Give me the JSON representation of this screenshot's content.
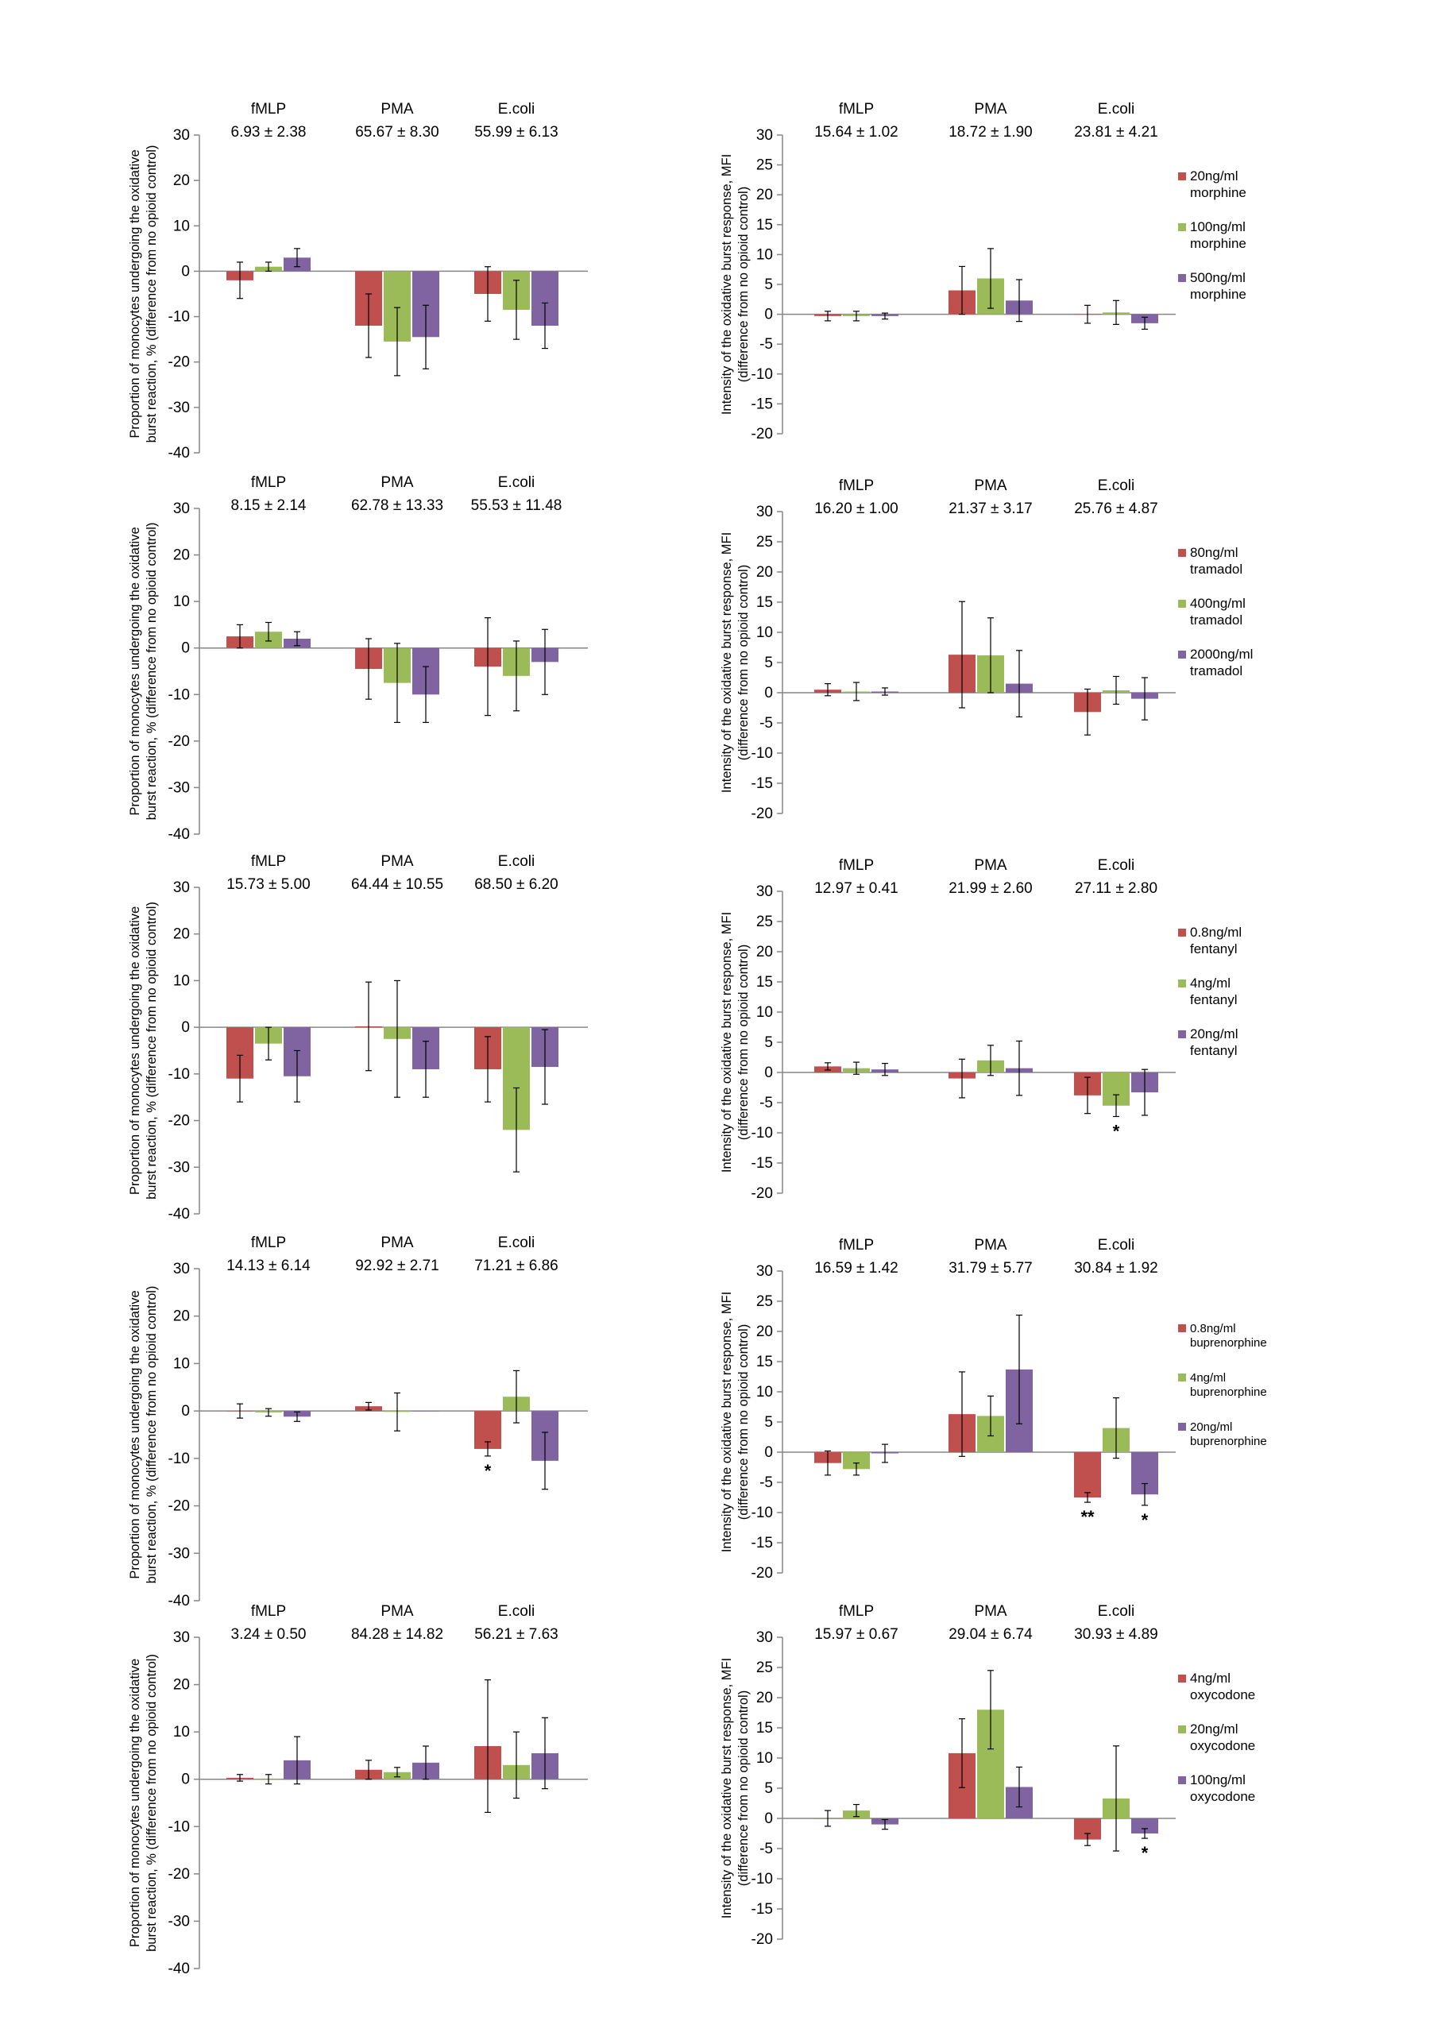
{
  "colors": {
    "low": "#C0504D",
    "mid": "#9BBB59",
    "high": "#8064A2"
  },
  "chart_data": [
    {
      "type": "bar",
      "row": 1,
      "panel": "proportion",
      "ylabel": "Proportion of monocytes undergoing the oxidative burst reaction, % (difference from no opioid control)",
      "ylim": [
        -40,
        30
      ],
      "yticks": [
        30,
        20,
        10,
        0,
        -10,
        -20,
        -30,
        -40
      ],
      "categories": [
        "fMLP",
        "PMA",
        "E.coli"
      ],
      "baselines": [
        "6.93 ± 2.38",
        "65.67 ± 8.30",
        "55.99 ± 6.13"
      ],
      "series": [
        {
          "values": [
            -2.0,
            -12.0,
            -5.0
          ],
          "errors": [
            4.0,
            7.0,
            6.0
          ],
          "marks": [
            "",
            "",
            ""
          ]
        },
        {
          "values": [
            1.0,
            -15.5,
            -8.5
          ],
          "errors": [
            1.0,
            7.5,
            6.5
          ],
          "marks": [
            "",
            "",
            ""
          ]
        },
        {
          "values": [
            3.0,
            -14.5,
            -12.0
          ],
          "errors": [
            2.0,
            7.0,
            5.0
          ],
          "marks": [
            "",
            "",
            ""
          ]
        }
      ],
      "legend": []
    },
    {
      "type": "bar",
      "row": 1,
      "panel": "intensity",
      "ylabel": "Intensity of the oxidative burst response, MFI (difference from no opioid control)",
      "ylim": [
        -20,
        30
      ],
      "yticks": [
        30,
        25,
        20,
        15,
        10,
        5,
        0,
        -5,
        -10,
        -15,
        -20
      ],
      "categories": [
        "fMLP",
        "PMA",
        "E.coli"
      ],
      "baselines": [
        "15.64 ± 1.02",
        "18.72 ± 1.90",
        "23.81 ± 4.21"
      ],
      "series": [
        {
          "values": [
            -0.3,
            4.0,
            0.0
          ],
          "errors": [
            0.8,
            4.0,
            1.5
          ],
          "marks": [
            "",
            "",
            ""
          ]
        },
        {
          "values": [
            -0.3,
            6.0,
            0.3
          ],
          "errors": [
            0.8,
            5.0,
            2.0
          ],
          "marks": [
            "",
            "",
            ""
          ]
        },
        {
          "values": [
            -0.3,
            2.3,
            -1.5
          ],
          "errors": [
            0.5,
            3.5,
            1.0
          ],
          "marks": [
            "",
            "",
            ""
          ]
        }
      ],
      "legend": [
        "20ng/ml morphine",
        "100ng/ml morphine",
        "500ng/ml morphine"
      ]
    },
    {
      "type": "bar",
      "row": 2,
      "panel": "proportion",
      "ylabel": "Proportion of monocytes undergoing the oxidative burst reaction, % (difference from no opioid control)",
      "ylim": [
        -40,
        30
      ],
      "yticks": [
        30,
        20,
        10,
        0,
        -10,
        -20,
        -30,
        -40
      ],
      "categories": [
        "fMLP",
        "PMA",
        "E.coli"
      ],
      "baselines": [
        "8.15 ± 2.14",
        "62.78 ± 13.33",
        "55.53 ± 11.48"
      ],
      "series": [
        {
          "values": [
            2.5,
            -4.5,
            -4.0
          ],
          "errors": [
            2.5,
            6.5,
            10.5
          ],
          "marks": [
            "",
            "",
            ""
          ]
        },
        {
          "values": [
            3.5,
            -7.5,
            -6.0
          ],
          "errors": [
            2.0,
            8.5,
            7.5
          ],
          "marks": [
            "",
            "",
            ""
          ]
        },
        {
          "values": [
            2.0,
            -10.0,
            -3.0
          ],
          "errors": [
            1.5,
            6.0,
            7.0
          ],
          "marks": [
            "",
            "",
            ""
          ]
        }
      ],
      "legend": []
    },
    {
      "type": "bar",
      "row": 2,
      "panel": "intensity",
      "ylabel": "Intensity of the oxidative burst response, MFI (difference from no opioid control)",
      "ylim": [
        -20,
        30
      ],
      "yticks": [
        30,
        25,
        20,
        15,
        10,
        5,
        0,
        -5,
        -10,
        -15,
        -20
      ],
      "categories": [
        "fMLP",
        "PMA",
        "E.coli"
      ],
      "baselines": [
        "16.20 ± 1.00",
        "21.37 ± 3.17",
        "25.76 ± 4.87"
      ],
      "series": [
        {
          "values": [
            0.5,
            6.3,
            -3.2
          ],
          "errors": [
            1.0,
            8.8,
            3.8
          ],
          "marks": [
            "",
            "",
            ""
          ]
        },
        {
          "values": [
            0.2,
            6.2,
            0.4
          ],
          "errors": [
            1.5,
            6.2,
            2.3
          ],
          "marks": [
            "",
            "",
            ""
          ]
        },
        {
          "values": [
            0.2,
            1.5,
            -1.0
          ],
          "errors": [
            0.6,
            5.5,
            3.5
          ],
          "marks": [
            "",
            "",
            ""
          ]
        }
      ],
      "legend": [
        "80ng/ml tramadol",
        "400ng/ml tramadol",
        "2000ng/ml tramadol"
      ]
    },
    {
      "type": "bar",
      "row": 3,
      "panel": "proportion",
      "ylabel": "Proportion of monocytes undergoing the oxidative burst reaction, % (difference from no opioid control)",
      "ylim": [
        -40,
        30
      ],
      "yticks": [
        30,
        20,
        10,
        0,
        -10,
        -20,
        -30,
        -40
      ],
      "categories": [
        "fMLP",
        "PMA",
        "E.coli"
      ],
      "baselines": [
        "15.73 ± 5.00",
        "64.44 ± 10.55",
        "68.50 ± 6.20"
      ],
      "series": [
        {
          "values": [
            -11.0,
            0.2,
            -9.0
          ],
          "errors": [
            5.0,
            9.5,
            7.0
          ],
          "marks": [
            "",
            "",
            ""
          ]
        },
        {
          "values": [
            -3.5,
            -2.5,
            -22.0
          ],
          "errors": [
            3.5,
            12.5,
            9.0
          ],
          "marks": [
            "",
            "",
            ""
          ]
        },
        {
          "values": [
            -10.5,
            -9.0,
            -8.5
          ],
          "errors": [
            5.5,
            6.0,
            8.0
          ],
          "marks": [
            "",
            "",
            ""
          ]
        }
      ],
      "legend": []
    },
    {
      "type": "bar",
      "row": 3,
      "panel": "intensity",
      "ylabel": "Intensity of the oxidative burst response, MFI (difference from no opioid control)",
      "ylim": [
        -20,
        30
      ],
      "yticks": [
        30,
        25,
        20,
        15,
        10,
        5,
        0,
        -5,
        -10,
        -15,
        -20
      ],
      "categories": [
        "fMLP",
        "PMA",
        "E.coli"
      ],
      "baselines": [
        "12.97 ± 0.41",
        "21.99 ± 2.60",
        "27.11 ± 2.80"
      ],
      "series": [
        {
          "values": [
            1.0,
            -1.0,
            -3.8
          ],
          "errors": [
            0.6,
            3.2,
            3.0
          ],
          "marks": [
            "",
            "",
            ""
          ]
        },
        {
          "values": [
            0.7,
            2.0,
            -5.5
          ],
          "errors": [
            1.0,
            2.5,
            1.8
          ],
          "marks": [
            "",
            "",
            "*"
          ]
        },
        {
          "values": [
            0.5,
            0.7,
            -3.3
          ],
          "errors": [
            1.0,
            4.5,
            3.8
          ],
          "marks": [
            "",
            "",
            ""
          ]
        }
      ],
      "legend": [
        "0.8ng/ml fentanyl",
        "4ng/ml fentanyl",
        "20ng/ml fentanyl"
      ]
    },
    {
      "type": "bar",
      "row": 4,
      "panel": "proportion",
      "ylabel": "Proportion of monocytes undergoing the oxidative burst reaction, % (difference from no opioid control)",
      "ylim": [
        -40,
        30
      ],
      "yticks": [
        30,
        20,
        10,
        0,
        -10,
        -20,
        -30,
        -40
      ],
      "categories": [
        "fMLP",
        "PMA",
        "E.coli"
      ],
      "baselines": [
        "14.13 ± 6.14",
        "92.92 ± 2.71",
        "71.21 ± 6.86"
      ],
      "series": [
        {
          "values": [
            0.0,
            1.0,
            -8.0
          ],
          "errors": [
            1.5,
            0.8,
            1.5
          ],
          "marks": [
            "",
            "",
            "*"
          ]
        },
        {
          "values": [
            -0.3,
            -0.2,
            3.0
          ],
          "errors": [
            0.8,
            4.0,
            5.5
          ],
          "marks": [
            "",
            "",
            ""
          ]
        },
        {
          "values": [
            -1.2,
            0.0,
            -10.5
          ],
          "errors": [
            1.0,
            0.0,
            6.0
          ],
          "marks": [
            "",
            "",
            ""
          ]
        }
      ],
      "legend": []
    },
    {
      "type": "bar",
      "row": 4,
      "panel": "intensity",
      "ylabel": "Intensity of the oxidative burst response, MFI (difference from no opioid control)",
      "ylim": [
        -20,
        30
      ],
      "yticks": [
        30,
        25,
        20,
        15,
        10,
        5,
        0,
        -5,
        -10,
        -15,
        -20
      ],
      "categories": [
        "fMLP",
        "PMA",
        "E.coli"
      ],
      "baselines": [
        "16.59 ± 1.42",
        "31.79 ± 5.77",
        "30.84 ± 1.92"
      ],
      "series": [
        {
          "values": [
            -1.8,
            6.3,
            -7.5
          ],
          "errors": [
            2.0,
            7.0,
            0.8
          ],
          "marks": [
            "",
            "",
            "**"
          ]
        },
        {
          "values": [
            -2.8,
            6.0,
            4.0
          ],
          "errors": [
            1.0,
            3.3,
            5.0
          ],
          "marks": [
            "",
            "",
            ""
          ]
        },
        {
          "values": [
            -0.2,
            13.7,
            -7.0
          ],
          "errors": [
            1.5,
            9.0,
            1.8
          ],
          "marks": [
            "",
            "",
            "*"
          ]
        }
      ],
      "legend": [
        "0.8ng/ml buprenorphine",
        "4ng/ml buprenorphine",
        "20ng/ml buprenorphine"
      ]
    },
    {
      "type": "bar",
      "row": 5,
      "panel": "proportion",
      "ylabel": "Proportion of monocytes undergoing the oxidative burst reaction, % (difference from no opioid control)",
      "ylim": [
        -40,
        30
      ],
      "yticks": [
        30,
        20,
        10,
        0,
        -10,
        -20,
        -30,
        -40
      ],
      "categories": [
        "fMLP",
        "PMA",
        "E.coli"
      ],
      "baselines": [
        "3.24 ± 0.50",
        "84.28 ± 14.82",
        "56.21 ± 7.63"
      ],
      "series": [
        {
          "values": [
            0.3,
            2.0,
            7.0
          ],
          "errors": [
            0.7,
            2.0,
            14.0
          ],
          "marks": [
            "",
            "",
            ""
          ]
        },
        {
          "values": [
            0.0,
            1.5,
            3.0
          ],
          "errors": [
            1.0,
            1.0,
            7.0
          ],
          "marks": [
            "",
            "",
            ""
          ]
        },
        {
          "values": [
            4.0,
            3.5,
            5.5
          ],
          "errors": [
            5.0,
            3.5,
            7.5
          ],
          "marks": [
            "",
            "",
            ""
          ]
        }
      ],
      "legend": []
    },
    {
      "type": "bar",
      "row": 5,
      "panel": "intensity",
      "ylabel": "Intensity of the oxidative burst response, MFI (difference from no opioid control)",
      "ylim": [
        -20,
        30
      ],
      "yticks": [
        30,
        25,
        20,
        15,
        10,
        5,
        0,
        -5,
        -10,
        -15,
        -20
      ],
      "categories": [
        "fMLP",
        "PMA",
        "E.coli"
      ],
      "baselines": [
        "15.97 ± 0.67",
        "29.04 ± 6.74",
        "30.93 ± 4.89"
      ],
      "series": [
        {
          "values": [
            0.0,
            10.8,
            -3.5
          ],
          "errors": [
            1.3,
            5.7,
            1.0
          ],
          "marks": [
            "",
            "",
            ""
          ]
        },
        {
          "values": [
            1.3,
            18.0,
            3.3
          ],
          "errors": [
            1.0,
            6.5,
            8.7
          ],
          "marks": [
            "",
            "",
            ""
          ]
        },
        {
          "values": [
            -1.0,
            5.2,
            -2.5
          ],
          "errors": [
            0.8,
            3.3,
            0.8
          ],
          "marks": [
            "",
            "",
            "*"
          ]
        }
      ],
      "legend": [
        "4ng/ml oxycodone",
        "20ng/ml oxycodone",
        "100ng/ml oxycodone"
      ]
    }
  ]
}
